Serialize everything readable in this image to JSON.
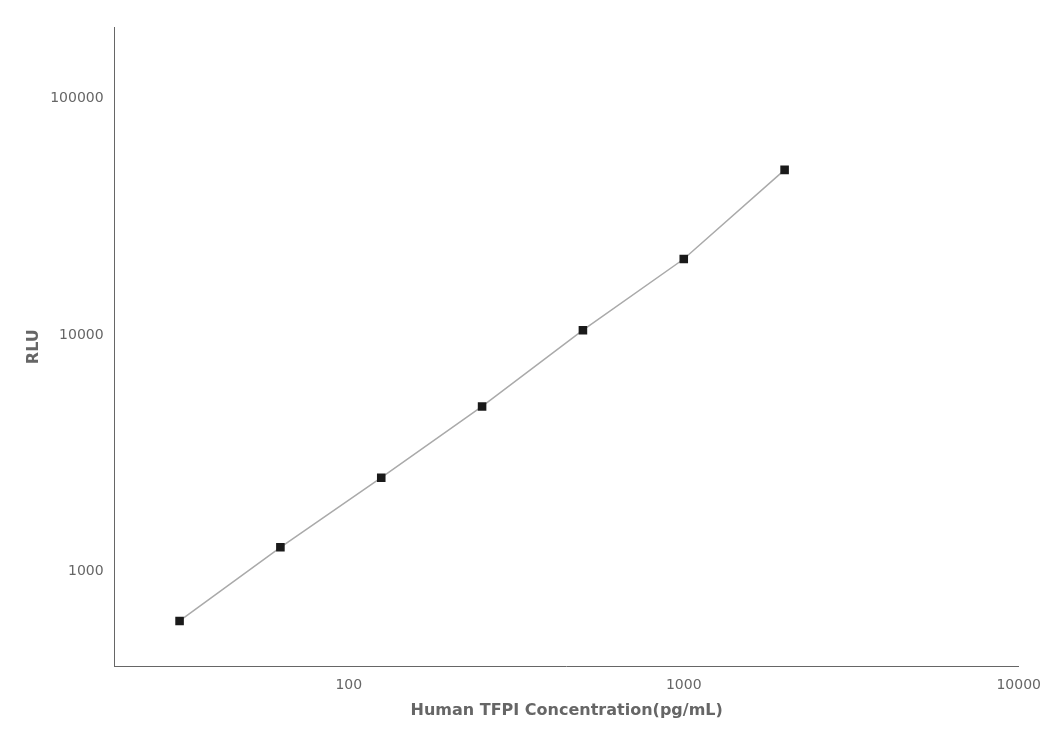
{
  "chart_data": {
    "type": "line",
    "x": [
      31.25,
      62.5,
      125,
      250,
      500,
      1000,
      2000
    ],
    "values": [
      620,
      1270,
      2500,
      5000,
      10500,
      21000,
      50000
    ],
    "color": "#aaaaaa",
    "colors": [
      "#1a1a1a",
      "#1a1a1a",
      "#1a1a1a",
      "#1a1a1a",
      "#1a1a1a",
      "#1a1a1a",
      "#1a1a1a"
    ],
    "marker": "square",
    "line_style": "solid",
    "xlabel": "Human TFPI Concentration(pg/mL)",
    "ylabel": "RLU",
    "log": true,
    "xlim": [
      20,
      10000
    ],
    "ylim": [
      400,
      200000
    ],
    "xticks": [
      100,
      1000,
      10000
    ],
    "yticks": [
      1000,
      10000,
      100000
    ],
    "grid": false
  }
}
